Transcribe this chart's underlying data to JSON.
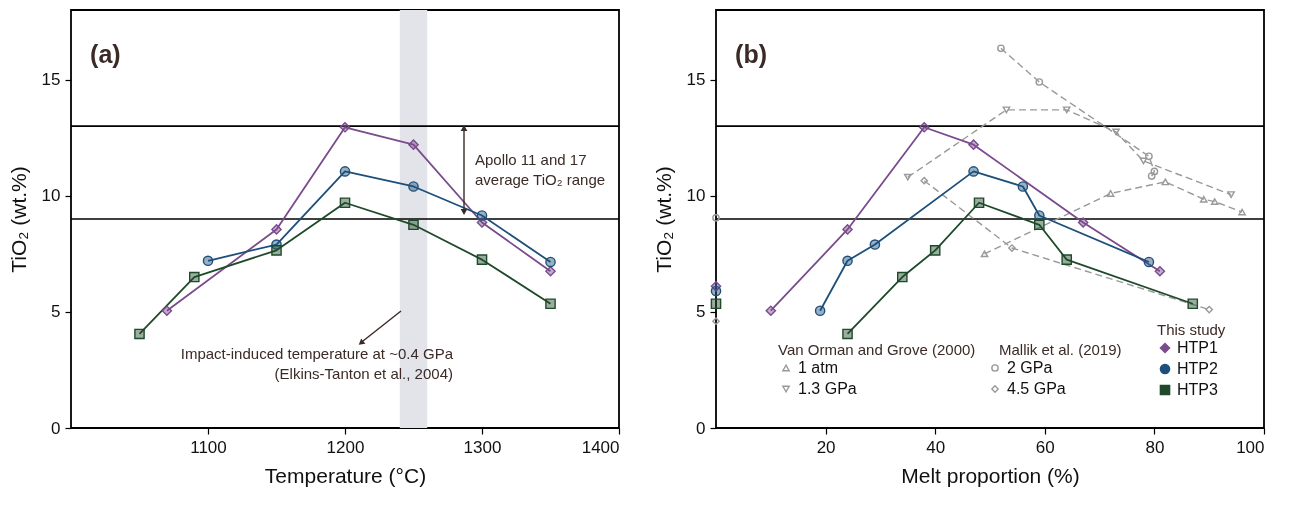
{
  "chart_data": [
    {
      "type": "line",
      "title": "(a)",
      "xlabel": "Temperature (°C)",
      "ylabel": "TiO₂ (wt.%)",
      "xlim": [
        1000,
        1400
      ],
      "xticks": [
        1100,
        1200,
        1300,
        1400
      ],
      "ylim": [
        0,
        18
      ],
      "yticks": [
        0,
        5,
        10,
        15
      ],
      "line_style": "solid",
      "series": [
        {
          "color": "#7a4b8c",
          "marker": "diamond",
          "x": [
            1070,
            1150,
            1200,
            1250,
            1300,
            1350
          ],
          "values": [
            5.05,
            8.55,
            12.95,
            12.2,
            8.85,
            6.75
          ]
        },
        {
          "color": "#1d4f7a",
          "marker": "circle",
          "x": [
            1100,
            1150,
            1200,
            1250,
            1300,
            1350
          ],
          "values": [
            7.2,
            7.9,
            11.05,
            10.4,
            9.15,
            7.15
          ]
        },
        {
          "color": "#1e4a2a",
          "marker": "square",
          "x": [
            1050,
            1090,
            1150,
            1200,
            1250,
            1300,
            1350
          ],
          "values": [
            4.05,
            6.5,
            7.65,
            9.7,
            8.75,
            7.25,
            5.35
          ]
        }
      ],
      "ref_lines": [
        {
          "axis": "y",
          "value": 13,
          "color": "#000000"
        },
        {
          "axis": "y",
          "value": 9,
          "color": "#000000"
        }
      ],
      "bands": [
        {
          "axis": "x",
          "from": 1240,
          "to": 1260,
          "color": "#e2e4ea"
        }
      ],
      "annotations": [
        "Apollo 11 and 17\naverage TiO₂ range",
        "Impact-induced temperature at ~0.4 GPa\n(Elkins-Tanton et al., 2004)"
      ]
    },
    {
      "type": "line",
      "title": "(b)",
      "xlabel": "Melt proportion (%)",
      "ylabel": "TiO₂ (wt.%)",
      "xlim": [
        0,
        100
      ],
      "xticks": [
        20,
        40,
        60,
        80,
        100
      ],
      "ylim": [
        0,
        18
      ],
      "yticks": [
        0,
        5,
        10,
        15
      ],
      "legend": "bottom right",
      "series": [
        {
          "name": "1 atm",
          "color": "#999999",
          "marker": "triangle",
          "line_style": "dashed",
          "x": [
            49,
            72,
            82,
            89,
            91,
            96
          ],
          "values": [
            7.5,
            10.1,
            10.6,
            9.85,
            9.75,
            9.3
          ]
        },
        {
          "name": "1.3 GPa",
          "color": "#999999",
          "marker": "triangle-down",
          "line_style": "dashed",
          "x": [
            35,
            53,
            64,
            73,
            78,
            94
          ],
          "values": [
            10.8,
            13.7,
            13.7,
            12.75,
            11.5,
            10.05
          ]
        },
        {
          "name": "2 GPa",
          "color": "#999999",
          "marker": "circle",
          "line_style": "dashed",
          "x": [
            0,
            26,
            52,
            59,
            79,
            80,
            79.5
          ],
          "values": [
            9.05,
            null,
            16.35,
            14.9,
            11.7,
            11.05,
            10.85
          ]
        },
        {
          "name": "4.5 GPa",
          "color": "#999999",
          "marker": "diamond",
          "line_style": "dashed",
          "x": [
            0,
            19,
            38,
            54,
            90
          ],
          "values": [
            4.6,
            null,
            10.65,
            7.75,
            5.1
          ]
        },
        {
          "name": "HTP1",
          "color": "#7a4b8c",
          "marker": "diamond",
          "line_style": "solid",
          "x": [
            0,
            5,
            10,
            24,
            38,
            47,
            67,
            81
          ],
          "values": [
            6.1,
            null,
            5.05,
            8.55,
            12.95,
            12.2,
            8.85,
            6.75
          ]
        },
        {
          "name": "HTP2",
          "color": "#1d4f7a",
          "marker": "circle",
          "line_style": "solid",
          "x": [
            0,
            10,
            19,
            24,
            29,
            47,
            56,
            59,
            79
          ],
          "values": [
            5.9,
            null,
            5.05,
            7.2,
            7.9,
            11.05,
            10.4,
            9.15,
            7.15
          ]
        },
        {
          "name": "HTP3",
          "color": "#1e4a2a",
          "marker": "square",
          "line_style": "solid",
          "x": [
            0,
            12,
            24,
            34,
            40,
            48,
            59,
            64,
            87
          ],
          "values": [
            5.35,
            null,
            4.05,
            6.5,
            7.65,
            9.7,
            8.75,
            7.25,
            5.35
          ]
        }
      ],
      "ref_lines": [
        {
          "axis": "y",
          "value": 13,
          "color": "#000000"
        },
        {
          "axis": "y",
          "value": 9,
          "color": "#000000"
        }
      ],
      "annotations": [
        "Van Orman and Grove (2000)",
        "Mallik et al. (2019)",
        "This study"
      ]
    }
  ]
}
